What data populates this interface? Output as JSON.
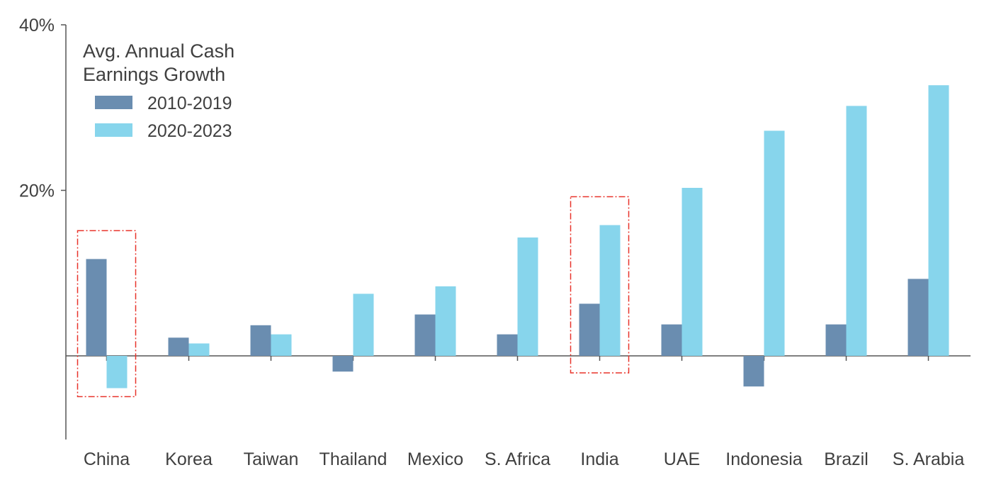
{
  "chart_data": {
    "type": "bar",
    "legend_title_lines": [
      "Avg. Annual Cash",
      "Earnings Growth"
    ],
    "legend_placement": "top-left",
    "categories": [
      "China",
      "Korea",
      "Taiwan",
      "Thailand",
      "Mexico",
      "S. Africa",
      "India",
      "UAE",
      "Indonesia",
      "Brazil",
      "S. Arabia"
    ],
    "series": [
      {
        "name": "2010-2019",
        "color": "#6a8db0",
        "values": [
          11.7,
          2.2,
          3.7,
          -1.9,
          5.0,
          2.6,
          6.3,
          3.8,
          -3.7,
          3.8,
          9.3
        ]
      },
      {
        "name": "2020-2023",
        "color": "#87d5ec",
        "values": [
          -3.9,
          1.5,
          2.6,
          7.5,
          8.4,
          14.3,
          15.8,
          20.3,
          27.2,
          30.2,
          32.7
        ]
      }
    ],
    "yticks": [
      20,
      40
    ],
    "ytick_labels": [
      "20%",
      "40%"
    ],
    "ylim": [
      -10,
      40
    ],
    "grid": false,
    "highlighted_categories": [
      "China",
      "India"
    ],
    "highlight_color": "#e8332a"
  }
}
